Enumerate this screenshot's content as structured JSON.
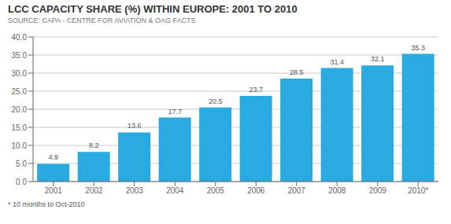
{
  "chart_data": {
    "type": "bar",
    "title": "LCC CAPACITY SHARE (%) WITHIN EUROPE: 2001 TO 2010",
    "subtitle": "SOURCE: CAPA - CENTRE FOR AVIATION & OAG FACTS",
    "annotations": [
      "* 10 months to Oct-2010"
    ],
    "categories": [
      "2001",
      "2002",
      "2003",
      "2004",
      "2005",
      "2006",
      "2007",
      "2008",
      "2009",
      "2010*"
    ],
    "values": [
      4.9,
      8.2,
      13.6,
      17.7,
      20.5,
      23.7,
      28.5,
      31.4,
      32.1,
      35.3
    ],
    "color": "#29ABE2",
    "ylim": [
      0,
      40
    ],
    "yticks": [
      {
        "value": 0,
        "label": "0.0"
      },
      {
        "value": 5,
        "label": "5.0"
      },
      {
        "value": 10,
        "label": "10.0"
      },
      {
        "value": 15,
        "label": "15.0"
      },
      {
        "value": 20,
        "label": "20.0"
      },
      {
        "value": 25,
        "label": "25.0"
      },
      {
        "value": 30,
        "label": "30.0"
      },
      {
        "value": 35,
        "label": "35.0"
      },
      {
        "value": 40,
        "label": "40.0"
      }
    ],
    "grid": true,
    "data_labels": true
  }
}
